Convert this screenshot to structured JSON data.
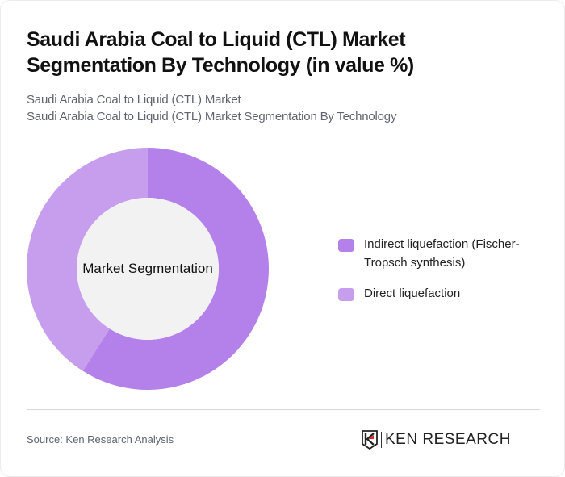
{
  "header": {
    "title": "Saudi Arabia Coal to Liquid (CTL) Market Segmentation By Technology (in value %)",
    "subtitle_line1": "Saudi Arabia Coal to Liquid (CTL) Market",
    "subtitle_line2": "Saudi Arabia Coal to Liquid (CTL) Market Segmentation By Technology"
  },
  "chart": {
    "center_label": "Market Segmentation"
  },
  "legend": {
    "items": [
      {
        "label": "Indirect liquefaction (Fischer-Tropsch synthesis)",
        "color": "#b480ea"
      },
      {
        "label": "Direct liquefaction",
        "color": "#c79eee"
      }
    ]
  },
  "footer": {
    "source": "Source: Ken Research Analysis",
    "logo_text": "KEN RESEARCH"
  },
  "chart_data": {
    "type": "pie",
    "variant": "donut",
    "title": "Saudi Arabia Coal to Liquid (CTL) Market Segmentation By Technology (in value %)",
    "center_label": "Market Segmentation",
    "categories": [
      "Indirect liquefaction (Fischer-Tropsch synthesis)",
      "Direct liquefaction"
    ],
    "values": [
      59,
      41
    ],
    "colors": [
      "#b480ea",
      "#c79eee"
    ],
    "start_angle_deg": 0,
    "direction": "clockwise",
    "legend_position": "right"
  }
}
